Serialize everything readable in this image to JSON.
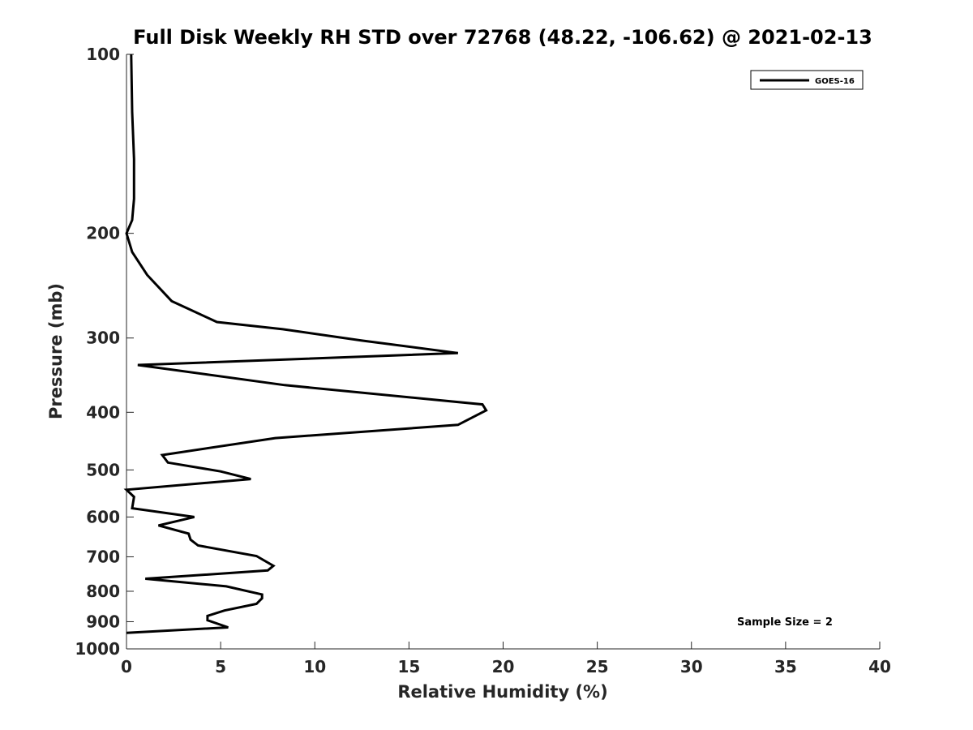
{
  "chart_data": {
    "type": "line",
    "title": "Full Disk Weekly RH STD over 72768 (48.22, -106.62) @ 2021-02-13",
    "xlabel": "Relative Humidity (%)",
    "ylabel": "Pressure (mb)",
    "xlim": [
      0,
      40
    ],
    "ylim": [
      100,
      1000
    ],
    "yscale": "log",
    "y_reversed": true,
    "xticks": [
      0,
      5,
      10,
      15,
      20,
      25,
      30,
      35,
      40
    ],
    "yticks": [
      100,
      200,
      300,
      400,
      500,
      600,
      700,
      800,
      900,
      1000
    ],
    "grid": false,
    "legend_position": "top-right",
    "annotation": "Sample Size = 2",
    "series": [
      {
        "name": "GOES-16",
        "color": "#000000",
        "points": [
          [
            0.25,
            100
          ],
          [
            0.3,
            125
          ],
          [
            0.4,
            150
          ],
          [
            0.4,
            175
          ],
          [
            0.3,
            190
          ],
          [
            0.0,
            200
          ],
          [
            0.3,
            215
          ],
          [
            1.1,
            235
          ],
          [
            2.4,
            260
          ],
          [
            4.8,
            282
          ],
          [
            8.3,
            290
          ],
          [
            12.5,
            303
          ],
          [
            17.6,
            318
          ],
          [
            0.6,
            333
          ],
          [
            8.4,
            360
          ],
          [
            18.9,
            388
          ],
          [
            19.1,
            397
          ],
          [
            17.6,
            420
          ],
          [
            7.9,
            442
          ],
          [
            1.9,
            472
          ],
          [
            2.2,
            486
          ],
          [
            5.0,
            503
          ],
          [
            6.6,
            518
          ],
          [
            0.0,
            540
          ],
          [
            0.4,
            555
          ],
          [
            0.3,
            580
          ],
          [
            3.6,
            600
          ],
          [
            1.7,
            620
          ],
          [
            3.3,
            640
          ],
          [
            3.4,
            655
          ],
          [
            3.8,
            670
          ],
          [
            6.9,
            698
          ],
          [
            7.8,
            725
          ],
          [
            7.5,
            738
          ],
          [
            1.0,
            762
          ],
          [
            5.3,
            785
          ],
          [
            7.2,
            810
          ],
          [
            7.2,
            822
          ],
          [
            6.9,
            840
          ],
          [
            5.2,
            862
          ],
          [
            4.3,
            880
          ],
          [
            4.3,
            895
          ],
          [
            5.4,
            920
          ],
          [
            0.0,
            940
          ]
        ]
      }
    ]
  }
}
